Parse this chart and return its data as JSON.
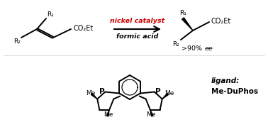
{
  "bg_color": "#ffffff",
  "black": "#000000",
  "red_color": "#cc0000",
  "fig_width": 3.78,
  "fig_height": 1.86,
  "dpi": 100,
  "nickel_text": "nickel catalyst",
  "formic_text": "formic acid",
  "ee_text": ">90% ",
  "ee_italic": "ee",
  "ligand_label": "ligand:",
  "ligand_name": "Me-DuPhos",
  "R1": "R₁",
  "R2": "R₂",
  "co2et": "CO₂Et"
}
